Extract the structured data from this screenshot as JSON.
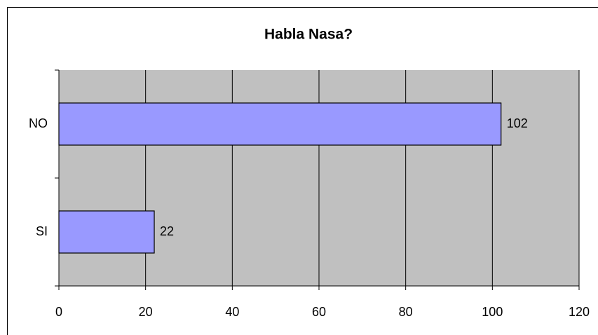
{
  "chart_data": {
    "type": "barh",
    "title": "Habla Nasa?",
    "categories": [
      "NO",
      "SI"
    ],
    "values": [
      102,
      22
    ],
    "color": "#9999ff",
    "xlim": [
      0,
      120
    ],
    "xticks": [
      0,
      20,
      40,
      60,
      80,
      100,
      120
    ],
    "grid": true,
    "data_labels": true
  }
}
